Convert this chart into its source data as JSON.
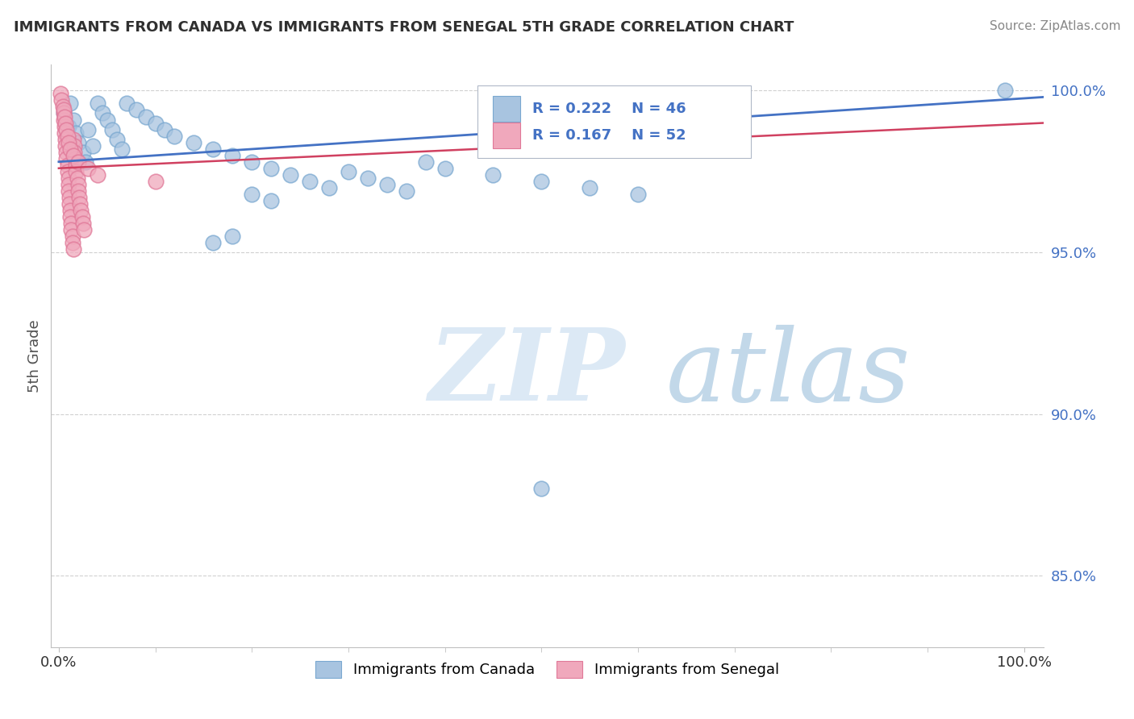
{
  "title": "IMMIGRANTS FROM CANADA VS IMMIGRANTS FROM SENEGAL 5TH GRADE CORRELATION CHART",
  "source": "Source: ZipAtlas.com",
  "ylabel": "5th Grade",
  "xlim": [
    0.0,
    1.0
  ],
  "ylim": [
    0.828,
    1.008
  ],
  "yticks": [
    0.85,
    0.9,
    0.95,
    1.0
  ],
  "ytick_labels": [
    "85.0%",
    "90.0%",
    "95.0%",
    "100.0%"
  ],
  "xticks": [
    0.0,
    1.0
  ],
  "xtick_labels": [
    "0.0%",
    "100.0%"
  ],
  "canada_R": 0.222,
  "canada_N": 46,
  "senegal_R": 0.167,
  "senegal_N": 52,
  "canada_color": "#a8c4e0",
  "canada_edge_color": "#7aa8d0",
  "senegal_color": "#f0a8bc",
  "senegal_edge_color": "#e07898",
  "canada_line_color": "#4472c4",
  "senegal_line_color": "#d04060",
  "legend_text_color": "#4472c4",
  "background_color": "#ffffff",
  "grid_color": "#d0d0d0",
  "canada_x": [
    0.005,
    0.01,
    0.012,
    0.015,
    0.018,
    0.02,
    0.025,
    0.028,
    0.03,
    0.035,
    0.04,
    0.045,
    0.05,
    0.055,
    0.06,
    0.065,
    0.07,
    0.08,
    0.09,
    0.1,
    0.11,
    0.12,
    0.14,
    0.16,
    0.18,
    0.2,
    0.22,
    0.24,
    0.26,
    0.28,
    0.3,
    0.32,
    0.34,
    0.36,
    0.38,
    0.4,
    0.45,
    0.5,
    0.55,
    0.6,
    0.2,
    0.22,
    0.18,
    0.16,
    0.98,
    0.5
  ],
  "canada_y": [
    0.993,
    0.989,
    0.996,
    0.991,
    0.987,
    0.984,
    0.981,
    0.978,
    0.988,
    0.983,
    0.996,
    0.993,
    0.991,
    0.988,
    0.985,
    0.982,
    0.996,
    0.994,
    0.992,
    0.99,
    0.988,
    0.986,
    0.984,
    0.982,
    0.98,
    0.978,
    0.976,
    0.974,
    0.972,
    0.97,
    0.975,
    0.973,
    0.971,
    0.969,
    0.978,
    0.976,
    0.974,
    0.972,
    0.97,
    0.968,
    0.968,
    0.966,
    0.955,
    0.953,
    1.0,
    0.877
  ],
  "senegal_x": [
    0.002,
    0.003,
    0.004,
    0.005,
    0.005,
    0.006,
    0.006,
    0.007,
    0.007,
    0.008,
    0.008,
    0.009,
    0.009,
    0.01,
    0.01,
    0.01,
    0.011,
    0.011,
    0.012,
    0.012,
    0.013,
    0.013,
    0.014,
    0.014,
    0.015,
    0.015,
    0.016,
    0.016,
    0.017,
    0.018,
    0.018,
    0.019,
    0.02,
    0.02,
    0.021,
    0.022,
    0.023,
    0.024,
    0.025,
    0.026,
    0.005,
    0.006,
    0.007,
    0.008,
    0.009,
    0.01,
    0.012,
    0.015,
    0.02,
    0.03,
    0.04,
    0.1
  ],
  "senegal_y": [
    0.999,
    0.997,
    0.995,
    0.993,
    0.991,
    0.989,
    0.987,
    0.985,
    0.983,
    0.981,
    0.979,
    0.977,
    0.975,
    0.973,
    0.971,
    0.969,
    0.967,
    0.965,
    0.963,
    0.961,
    0.959,
    0.957,
    0.955,
    0.953,
    0.951,
    0.985,
    0.983,
    0.981,
    0.979,
    0.977,
    0.975,
    0.973,
    0.971,
    0.969,
    0.967,
    0.965,
    0.963,
    0.961,
    0.959,
    0.957,
    0.994,
    0.992,
    0.99,
    0.988,
    0.986,
    0.984,
    0.982,
    0.98,
    0.978,
    0.976,
    0.974,
    0.972
  ]
}
